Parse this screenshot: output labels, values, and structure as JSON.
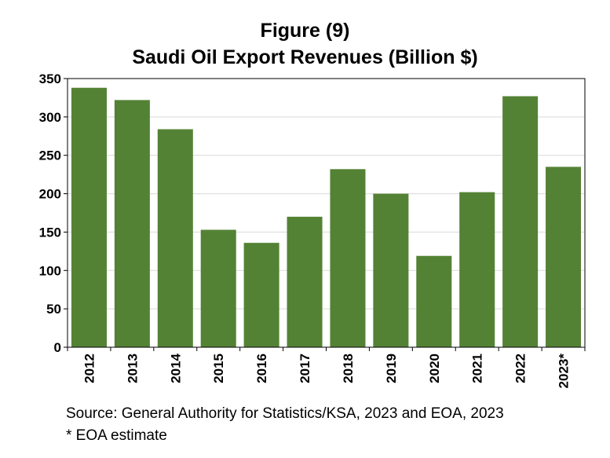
{
  "chart_data": {
    "type": "bar",
    "title": "Figure (9)",
    "subtitle": "Saudi Oil Export Revenues (Billion $)",
    "categories": [
      "2012",
      "2013",
      "2014",
      "2015",
      "2016",
      "2017",
      "2018",
      "2019",
      "2020",
      "2021",
      "2022",
      "2023*"
    ],
    "values": [
      338,
      322,
      284,
      153,
      136,
      170,
      232,
      200,
      119,
      202,
      327,
      235
    ],
    "ylim": [
      0,
      350
    ],
    "yticks": [
      0,
      50,
      100,
      150,
      200,
      250,
      300,
      350
    ],
    "xlabel": "",
    "ylabel": "",
    "grid": true,
    "bar_color": "#548235",
    "grid_color": "#d9d9d9",
    "x_tick_rotation": "vertical"
  },
  "source": "Source: General Authority for Statistics/KSA, 2023 and EOA, 2023",
  "note": "* EOA estimate"
}
